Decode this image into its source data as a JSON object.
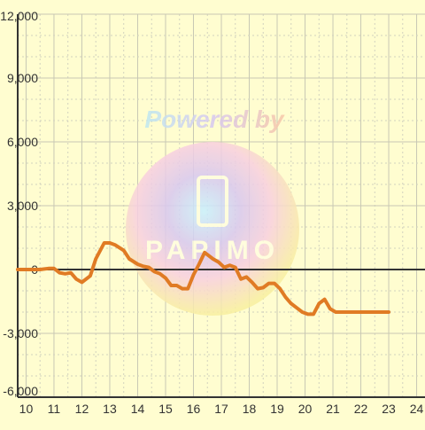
{
  "chart_data": {
    "type": "line",
    "title": "",
    "xlabel": "",
    "ylabel": "",
    "xlim": [
      9.7,
      24.3
    ],
    "ylim": [
      -6000,
      12000
    ],
    "x_ticks": [
      "10",
      "11",
      "12",
      "13",
      "14",
      "15",
      "16",
      "17",
      "18",
      "19",
      "20",
      "21",
      "22",
      "23",
      "24"
    ],
    "y_ticks": [
      "12,000",
      "9,000",
      "6,000",
      "3,000",
      "0",
      "-3,000",
      "-6,000"
    ],
    "grid": true,
    "colors": {
      "background": "#fffdd0",
      "line": "#e07b24",
      "axis": "#333333"
    },
    "watermark": {
      "text": "Powered by",
      "logo_text": "PAPIMO"
    },
    "series": [
      {
        "x": [
          9.7,
          10.0,
          10.3,
          10.5,
          10.8,
          11.0,
          11.2,
          11.4,
          11.6,
          11.8,
          12.0,
          12.3,
          12.5,
          12.8,
          13.0,
          13.2,
          13.5,
          13.7,
          14.0,
          14.2,
          14.4,
          14.6,
          14.8,
          15.0,
          15.2,
          15.4,
          15.6,
          15.8,
          16.0,
          16.2,
          16.4,
          16.7,
          16.9,
          17.1,
          17.3,
          17.5,
          17.7,
          17.9,
          18.1,
          18.3,
          18.5,
          18.7,
          18.9,
          19.1,
          19.3,
          19.5,
          19.7,
          19.9,
          20.1,
          20.3,
          20.5,
          20.7,
          20.9,
          21.1,
          21.3,
          21.5,
          21.7,
          21.9,
          22.1,
          22.3,
          22.5,
          22.7,
          22.9,
          23.0
        ],
        "values": [
          0,
          0,
          0,
          0,
          50,
          50,
          -150,
          -200,
          -150,
          -450,
          -600,
          -300,
          500,
          1250,
          1250,
          1150,
          900,
          500,
          250,
          150,
          100,
          -100,
          -200,
          -400,
          -750,
          -750,
          -900,
          -900,
          -250,
          250,
          800,
          500,
          350,
          100,
          200,
          100,
          -450,
          -350,
          -600,
          -900,
          -850,
          -650,
          -650,
          -900,
          -1300,
          -1600,
          -1800,
          -2000,
          -2100,
          -2100,
          -1600,
          -1400,
          -1850,
          -2000,
          -2000,
          -2000,
          -2000,
          -2000,
          -2000,
          -2000,
          -2000,
          -2000,
          -2000,
          -2000
        ]
      }
    ]
  }
}
